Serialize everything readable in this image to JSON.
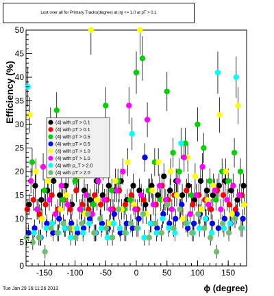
{
  "chart_data": {
    "type": "scatter",
    "title": "Lost over all for Primary Tracks(degree) at |η| <= 1.0 at pT > 0.1",
    "xlabel": "ϕ (degree)",
    "ylabel": "Efficiency (%)",
    "xlim": [
      -180,
      180
    ],
    "ylim": [
      0,
      50
    ],
    "xticks": [
      -150,
      -100,
      -50,
      0,
      50,
      100,
      150
    ],
    "yticks": [
      0,
      5,
      10,
      15,
      20,
      25,
      30,
      35,
      40,
      45,
      50
    ],
    "grid": false,
    "legend_position": "left-middle",
    "series": [
      {
        "name": "(4) with pT > 0.1",
        "color": "#000000",
        "x": [
          -175,
          -165,
          -155,
          -145,
          -135,
          -125,
          -115,
          -105,
          -95,
          -85,
          -75,
          -65,
          -55,
          -45,
          -35,
          -25,
          -15,
          -5,
          5,
          15,
          25,
          35,
          45,
          55,
          65,
          75,
          85,
          95,
          105,
          115,
          125,
          135,
          145,
          155,
          165,
          175
        ],
        "y": [
          13,
          17,
          14,
          16,
          18,
          15,
          17,
          13,
          19,
          16,
          14,
          18,
          15,
          17,
          16,
          18,
          14,
          17,
          16,
          13,
          17,
          15,
          19,
          16,
          18,
          15,
          17,
          14,
          18,
          16,
          15,
          17,
          18,
          16,
          14,
          17
        ]
      },
      {
        "name": "(4) with pT > 0.1",
        "color": "#ff0000",
        "x": [
          -178,
          -168,
          -158,
          -148,
          -138,
          -128,
          -118,
          -108,
          -98,
          -88,
          -78,
          -68,
          -58,
          -48,
          -38,
          -28,
          -18,
          -8,
          2,
          12,
          22,
          32,
          42,
          52,
          62,
          72,
          82,
          92,
          102,
          112,
          122,
          132,
          142,
          152,
          162,
          172
        ],
        "y": [
          12,
          14,
          11,
          13,
          15,
          12,
          14,
          12,
          16,
          13,
          12,
          15,
          13,
          14,
          12,
          16,
          13,
          15,
          12,
          14,
          16,
          13,
          17,
          14,
          15,
          12,
          16,
          13,
          15,
          14,
          12,
          16,
          15,
          13,
          12,
          15
        ]
      },
      {
        "name": "(4) with pT > 0.5",
        "color": "#00d000",
        "x": [
          -170,
          -160,
          -150,
          -140,
          -130,
          -120,
          -110,
          -100,
          -90,
          -80,
          -70,
          -60,
          -50,
          -40,
          -30,
          -20,
          -10,
          0,
          10,
          20,
          30,
          40,
          50,
          60,
          70,
          80,
          90,
          100,
          110,
          120,
          130,
          140,
          150,
          160,
          170
        ],
        "y": [
          22,
          12,
          16,
          30,
          33,
          14,
          20,
          18,
          12,
          15,
          13,
          20,
          34,
          16,
          18,
          12,
          14,
          41,
          44,
          16,
          22,
          14,
          37,
          24,
          20,
          26,
          15,
          30,
          25,
          18,
          14,
          20,
          18,
          24,
          20
        ]
      },
      {
        "name": "(4) with pT > 0.5",
        "color": "#0000ff",
        "x": [
          -176,
          -166,
          -156,
          -146,
          -136,
          -126,
          -116,
          -106,
          -96,
          -86,
          -76,
          -66,
          -56,
          -46,
          -36,
          -26,
          -16,
          -6,
          4,
          14,
          24,
          34,
          44,
          54,
          64,
          74,
          84,
          94,
          104,
          114,
          124,
          134,
          144,
          154,
          164,
          174
        ],
        "y": [
          7,
          8,
          6,
          9,
          7,
          10,
          8,
          9,
          7,
          8,
          10,
          7,
          9,
          8,
          11,
          7,
          9,
          8,
          10,
          23,
          9,
          8,
          11,
          9,
          10,
          13,
          8,
          9,
          11,
          10,
          9,
          8,
          10,
          9,
          11,
          10
        ]
      },
      {
        "name": "(4) with pT > 1.0",
        "color": "#ffff00",
        "x": [
          -174,
          -164,
          -154,
          -144,
          -134,
          -124,
          -114,
          -104,
          -94,
          -84,
          -74,
          -64,
          -54,
          -44,
          -34,
          -24,
          -14,
          -4,
          6,
          16,
          26,
          36,
          46,
          56,
          66,
          76,
          84,
          96,
          106,
          116,
          126,
          136,
          146,
          156,
          166,
          176
        ],
        "y": [
          32,
          20,
          10,
          18,
          21,
          12,
          15,
          8,
          19,
          11,
          50,
          14,
          21,
          9,
          18,
          12,
          22,
          13,
          50,
          11,
          16,
          22,
          14,
          20,
          15,
          10,
          23,
          19,
          12,
          14,
          17,
          32,
          20,
          11,
          34,
          13
        ]
      },
      {
        "name": "(4) with pT > 1.0",
        "color": "#ff00ff",
        "x": [
          -172,
          -162,
          -152,
          -142,
          -132,
          -122,
          -112,
          -102,
          -92,
          -82,
          -72,
          -62,
          -52,
          -42,
          -32,
          -22,
          -12,
          -2,
          8,
          18,
          28,
          38,
          48,
          58,
          68,
          78,
          88,
          98,
          108,
          118,
          128,
          138,
          148,
          158,
          168
        ],
        "y": [
          18,
          12,
          21,
          14,
          11,
          17,
          13,
          20,
          12,
          15,
          11,
          18,
          14,
          12,
          16,
          20,
          34,
          12,
          15,
          31,
          13,
          17,
          14,
          12,
          18,
          23,
          11,
          15,
          21,
          13,
          16,
          12,
          14,
          17,
          15
        ]
      },
      {
        "name": "(4) with pT > 2.0",
        "color": "#00ffff",
        "x": [
          -177,
          -167,
          -157,
          -147,
          -137,
          -127,
          -117,
          -107,
          -97,
          -87,
          -77,
          -67,
          -57,
          -47,
          -37,
          -27,
          -17,
          -7,
          3,
          13,
          23,
          33,
          43,
          53,
          63,
          73,
          83,
          93,
          103,
          113,
          123,
          133,
          143,
          153,
          163,
          173
        ],
        "y": [
          38,
          7,
          6,
          8,
          9,
          7,
          8,
          6,
          8,
          7,
          9,
          7,
          8,
          6,
          9,
          8,
          7,
          28,
          8,
          6,
          9,
          7,
          10,
          8,
          7,
          26,
          9,
          7,
          8,
          10,
          7,
          41,
          8,
          9,
          40,
          8
        ]
      },
      {
        "name": "(4) with pT > 2.0",
        "color": "#6fbf6f",
        "x": [
          -179,
          -169,
          -159,
          -149,
          -139,
          -129,
          -119,
          -109,
          -99,
          -89,
          -79,
          -69,
          -59,
          -49,
          -39,
          -29,
          -19,
          -9,
          1,
          11,
          21,
          31,
          41,
          51,
          61,
          71,
          81,
          91,
          101,
          111,
          121,
          131,
          141,
          151,
          161,
          171
        ],
        "y": [
          6,
          5,
          6,
          3,
          8,
          7,
          9,
          8,
          6,
          9,
          11,
          7,
          10,
          8,
          6,
          12,
          7,
          9,
          8,
          11,
          6,
          9,
          7,
          13,
          8,
          12,
          9,
          7,
          11,
          8,
          6,
          3,
          9,
          7,
          10,
          8
        ]
      }
    ],
    "legend": [
      {
        "label": "(4) with pT > 0.1",
        "color": "#000000"
      },
      {
        "label": "(4) with pT > 0.1",
        "color": "#ff0000"
      },
      {
        "label": "(4) with pT > 0.5",
        "color": "#00d000"
      },
      {
        "label": "(4) with pT > 0.5",
        "color": "#0000ff"
      },
      {
        "label": "(4) with pT > 1.0",
        "color": "#ffff00"
      },
      {
        "label": "(4) with pT > 1.0",
        "color": "#ff00ff"
      },
      {
        "label": "(4) with p_T > 2.0",
        "color": "#00ffff"
      },
      {
        "label": "(4) with pT > 2.0",
        "color": "#6fbf6f"
      }
    ]
  },
  "footer": {
    "timestamp": "Tue Jan 29 16:11:26 2013"
  }
}
